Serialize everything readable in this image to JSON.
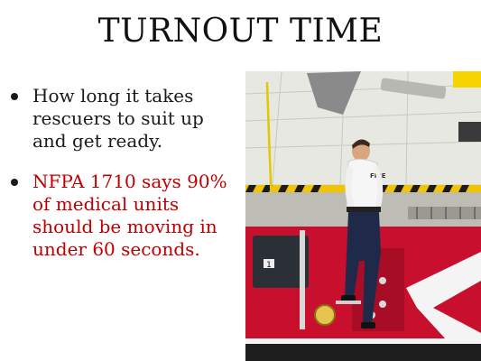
{
  "slide": {
    "title": "TURNOUT TIME",
    "bullets": [
      {
        "text": "How long it takes rescuers to suit up and get ready.",
        "color": "#1a1a1a"
      },
      {
        "text": "NFPA 1710 says 90% of medical units should be moving in under 60 seconds.",
        "color": "#c00000"
      }
    ]
  },
  "photo": {
    "subject": "firefighter-on-fire-truck",
    "jacket_text": "FIRE",
    "truck_number": "1",
    "colors": {
      "truck_red": "#c8102e",
      "ceiling": "#e6e6e0",
      "chevron_white": "#f4f4f4"
    }
  }
}
